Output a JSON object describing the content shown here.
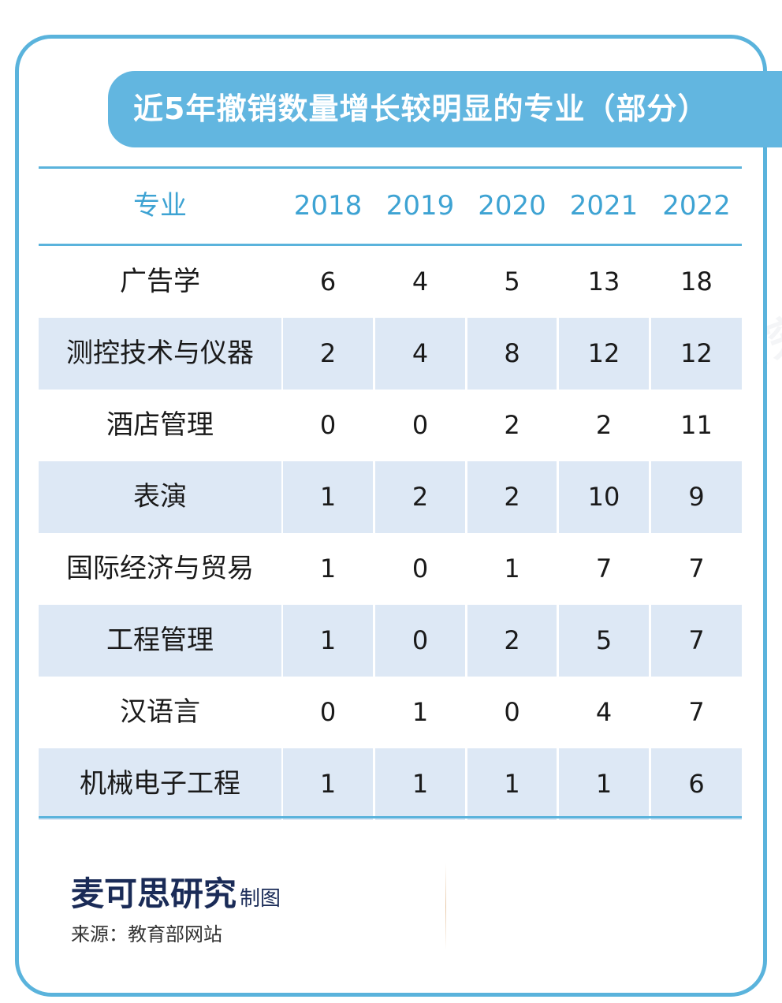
{
  "title": "近5年撤销数量增长较明显的专业（部分）",
  "chart_data": {
    "type": "table",
    "columns": [
      "专业",
      "2018",
      "2019",
      "2020",
      "2021",
      "2022"
    ],
    "rows": [
      {
        "name": "广告学",
        "values": [
          "6",
          "4",
          "5",
          "13",
          "18"
        ]
      },
      {
        "name": "测控技术与仪器",
        "values": [
          "2",
          "4",
          "8",
          "12",
          "12"
        ]
      },
      {
        "name": "酒店管理",
        "values": [
          "0",
          "0",
          "2",
          "2",
          "11"
        ]
      },
      {
        "name": "表演",
        "values": [
          "1",
          "2",
          "2",
          "10",
          "9"
        ]
      },
      {
        "name": "国际经济与贸易",
        "values": [
          "1",
          "0",
          "1",
          "7",
          "7"
        ]
      },
      {
        "name": "工程管理",
        "values": [
          "1",
          "0",
          "2",
          "5",
          "7"
        ]
      },
      {
        "name": "汉语言",
        "values": [
          "0",
          "1",
          "0",
          "4",
          "7"
        ]
      },
      {
        "name": "机械电子工程",
        "values": [
          "1",
          "1",
          "1",
          "1",
          "6"
        ]
      }
    ]
  },
  "footer": {
    "brand": "麦可思研究",
    "brand_suffix": "制图",
    "source": "来源：教育部网站"
  },
  "watermark": "麦可思研究",
  "colors": {
    "accent": "#5ab3dc",
    "header_text": "#3ea3d3",
    "shaded_row": "#dde8f5",
    "brand": "#1a2b57"
  }
}
